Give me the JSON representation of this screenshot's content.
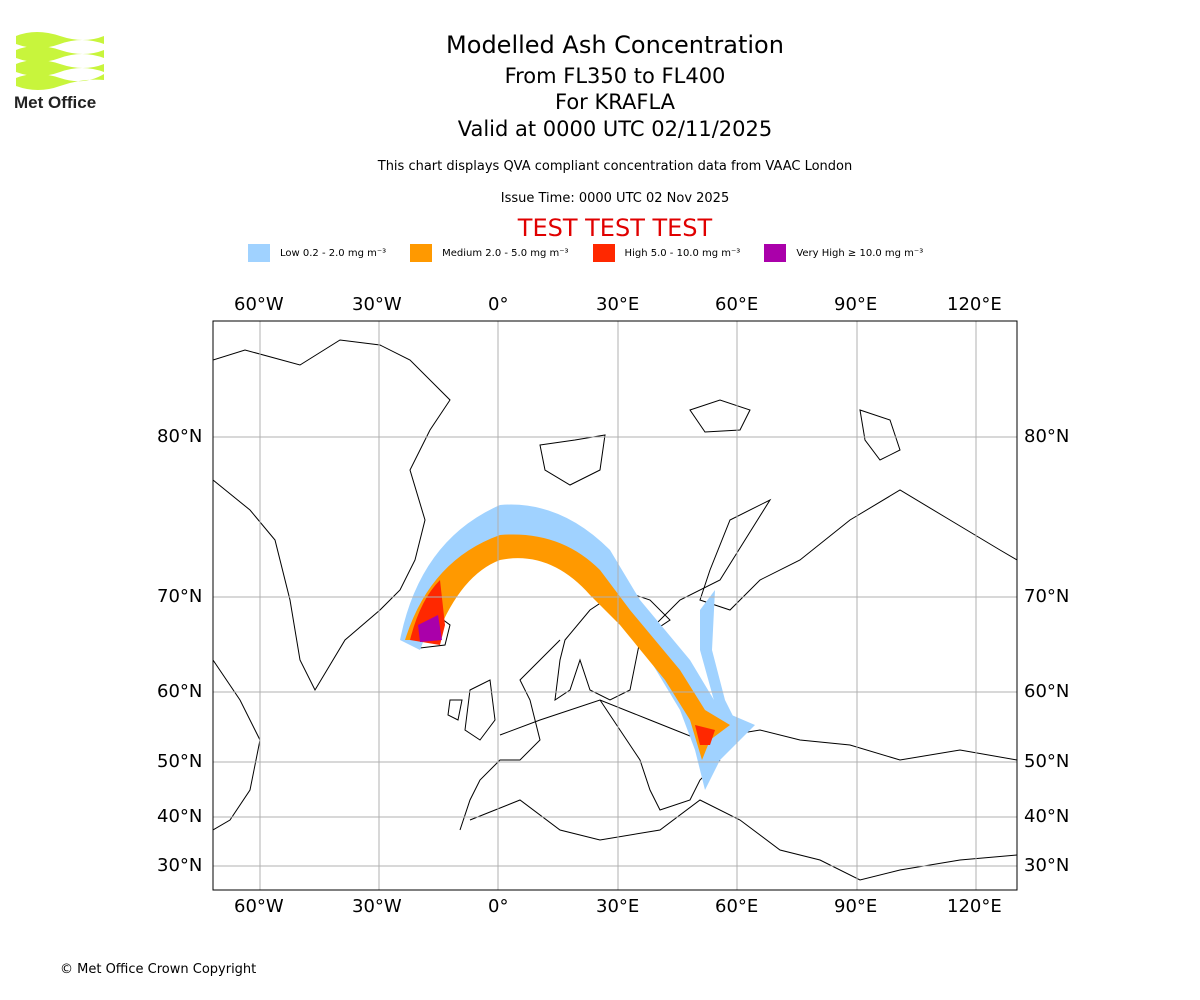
{
  "logo": {
    "text": "Met Office"
  },
  "header": {
    "title": "Modelled Ash Concentration",
    "levels": "From FL350 to FL400",
    "volcano": "For KRAFLA",
    "valid": "Valid at 0000 UTC 02/11/2025",
    "description": "This chart displays QVA compliant concentration data from VAAC London",
    "issue": "Issue Time: 0000 UTC 02 Nov 2025",
    "test_banner": "TEST TEST TEST"
  },
  "legend": [
    {
      "label": "Low 0.2 - 2.0 mg m⁻³",
      "color": "#a0d2ff"
    },
    {
      "label": "Medium 2.0 - 5.0 mg m⁻³",
      "color": "#ff9900"
    },
    {
      "label": "High 5.0 - 10.0 mg m⁻³",
      "color": "#ff2800"
    },
    {
      "label": "Very High ≥ 10.0 mg m⁻³",
      "color": "#aa00aa"
    }
  ],
  "map": {
    "lon_labels": [
      "60°W",
      "30°W",
      "0°",
      "30°E",
      "60°E",
      "90°E",
      "120°E"
    ],
    "lat_labels": [
      "80°N",
      "70°N",
      "60°N",
      "50°N",
      "40°N",
      "30°N"
    ]
  },
  "footer": {
    "copyright": "© Met Office Crown Copyright"
  }
}
